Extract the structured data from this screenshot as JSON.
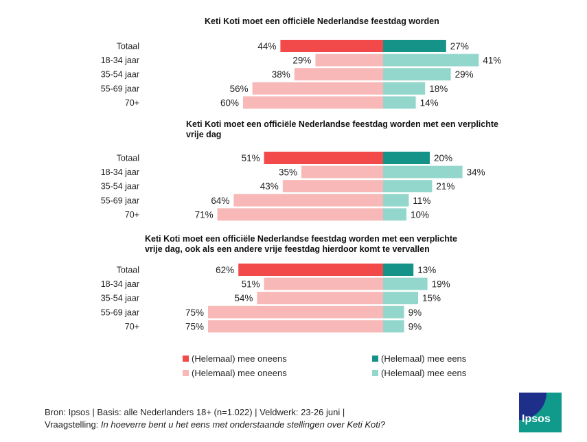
{
  "chart_data": [
    {
      "type": "bar",
      "title": "Keti Koti moet een officiële Nederlandse feestdag worden",
      "categories": [
        "Totaal",
        "18-34 jaar",
        "35-54 jaar",
        "55-69 jaar",
        "70+"
      ],
      "series": [
        {
          "name": "(Helemaal) mee oneens",
          "values": [
            44,
            29,
            38,
            56,
            60
          ]
        },
        {
          "name": "(Helemaal) mee eens",
          "values": [
            27,
            41,
            29,
            18,
            14
          ]
        }
      ]
    },
    {
      "type": "bar",
      "title": "Keti Koti moet een officiële Nederlandse feestdag worden met een verplichte vrije dag",
      "categories": [
        "Totaal",
        "18-34 jaar",
        "35-54 jaar",
        "55-69 jaar",
        "70+"
      ],
      "series": [
        {
          "name": "(Helemaal) mee oneens",
          "values": [
            51,
            35,
            43,
            64,
            71
          ]
        },
        {
          "name": "(Helemaal) mee eens",
          "values": [
            20,
            34,
            21,
            11,
            10
          ]
        }
      ]
    },
    {
      "type": "bar",
      "title": "Keti Koti moet een officiële Nederlandse feestdag worden met een verplichte vrije dag, ook als een andere vrije feestdag hierdoor komt te vervallen",
      "categories": [
        "Totaal",
        "18-34 jaar",
        "35-54 jaar",
        "55-69 jaar",
        "70+"
      ],
      "series": [
        {
          "name": "(Helemaal) mee oneens",
          "values": [
            62,
            51,
            54,
            75,
            75
          ]
        },
        {
          "name": "(Helemaal) mee eens",
          "values": [
            13,
            19,
            15,
            9,
            9
          ]
        }
      ]
    }
  ],
  "colors": {
    "disagree_total": "#f24a4a",
    "agree_total": "#159389",
    "disagree_group": "#f8b8b8",
    "agree_group": "#93d7cc"
  },
  "legend": {
    "disagree_total": "(Helemaal) mee oneens",
    "agree_total": "(Helemaal) mee eens",
    "disagree_group": "(Helemaal) mee oneens",
    "agree_group": "(Helemaal) mee eens"
  },
  "footer": {
    "source": "Bron: Ipsos | Basis: alle Nederlanders 18+ (n=1.022) | Veldwerk: 23-26 juni |",
    "question_label": "Vraagstelling: ",
    "question": "In hoeverre bent u het eens met onderstaande stellingen over Keti Koti?"
  },
  "logo": {
    "text": "Ipsos"
  }
}
